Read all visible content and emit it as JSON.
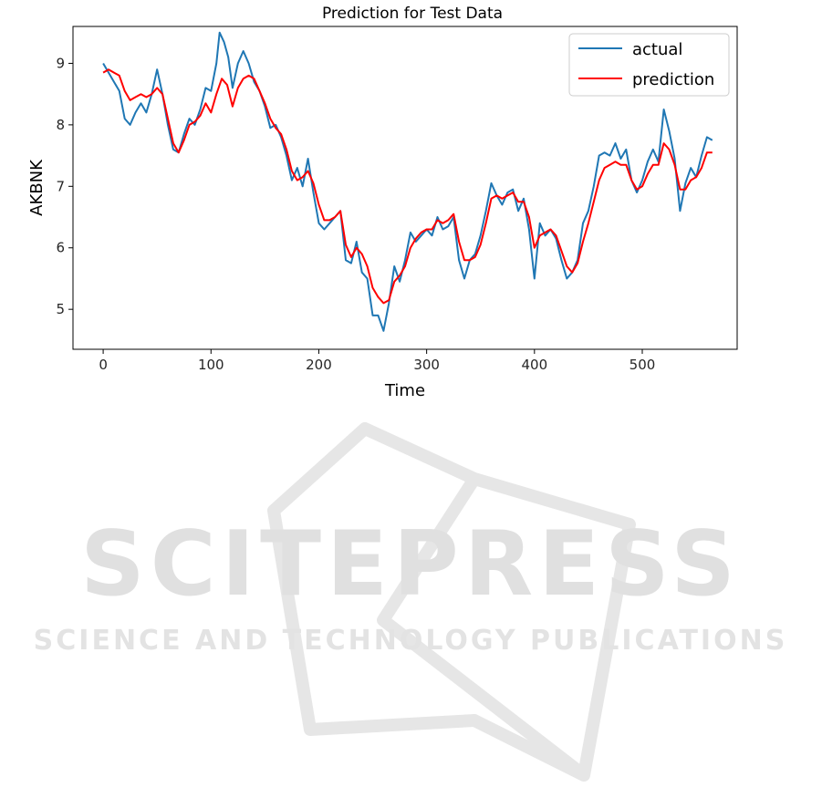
{
  "watermark": {
    "brand": "SCITEPRESS",
    "tagline": "SCIENCE AND TECHNOLOGY PUBLICATIONS"
  },
  "colors": {
    "actual": "#1f77b4",
    "prediction": "#ff0000",
    "watermark": "#e0e0e0"
  },
  "chart_data": {
    "type": "line",
    "title": "Prediction for Test Data",
    "xlabel": "Time",
    "ylabel": "AKBNK",
    "xlim": [
      -28,
      588
    ],
    "ylim": [
      4.35,
      9.6
    ],
    "xticks": [
      0,
      100,
      200,
      300,
      400,
      500
    ],
    "yticks": [
      5,
      6,
      7,
      8,
      9
    ],
    "grid": false,
    "legend": "top-right",
    "series": [
      {
        "name": "actual",
        "color": "#1f77b4",
        "points": [
          [
            0,
            9.0
          ],
          [
            5,
            8.85
          ],
          [
            10,
            8.7
          ],
          [
            15,
            8.55
          ],
          [
            20,
            8.1
          ],
          [
            25,
            8.0
          ],
          [
            30,
            8.2
          ],
          [
            35,
            8.35
          ],
          [
            40,
            8.2
          ],
          [
            45,
            8.5
          ],
          [
            50,
            8.9
          ],
          [
            55,
            8.5
          ],
          [
            60,
            8.0
          ],
          [
            65,
            7.6
          ],
          [
            70,
            7.55
          ],
          [
            75,
            7.85
          ],
          [
            80,
            8.1
          ],
          [
            85,
            8.0
          ],
          [
            90,
            8.25
          ],
          [
            95,
            8.6
          ],
          [
            100,
            8.55
          ],
          [
            105,
            9.0
          ],
          [
            108,
            9.5
          ],
          [
            112,
            9.35
          ],
          [
            116,
            9.1
          ],
          [
            120,
            8.6
          ],
          [
            125,
            9.0
          ],
          [
            130,
            9.2
          ],
          [
            135,
            9.0
          ],
          [
            140,
            8.7
          ],
          [
            145,
            8.55
          ],
          [
            150,
            8.3
          ],
          [
            155,
            7.95
          ],
          [
            160,
            8.0
          ],
          [
            165,
            7.8
          ],
          [
            170,
            7.5
          ],
          [
            175,
            7.1
          ],
          [
            180,
            7.3
          ],
          [
            185,
            7.0
          ],
          [
            190,
            7.45
          ],
          [
            195,
            6.9
          ],
          [
            200,
            6.4
          ],
          [
            205,
            6.3
          ],
          [
            210,
            6.4
          ],
          [
            215,
            6.5
          ],
          [
            220,
            6.6
          ],
          [
            225,
            5.8
          ],
          [
            230,
            5.75
          ],
          [
            235,
            6.1
          ],
          [
            240,
            5.6
          ],
          [
            245,
            5.5
          ],
          [
            250,
            4.9
          ],
          [
            255,
            4.9
          ],
          [
            260,
            4.65
          ],
          [
            265,
            5.1
          ],
          [
            270,
            5.7
          ],
          [
            275,
            5.45
          ],
          [
            280,
            5.8
          ],
          [
            285,
            6.25
          ],
          [
            290,
            6.1
          ],
          [
            295,
            6.2
          ],
          [
            300,
            6.3
          ],
          [
            305,
            6.2
          ],
          [
            310,
            6.5
          ],
          [
            315,
            6.3
          ],
          [
            320,
            6.35
          ],
          [
            325,
            6.5
          ],
          [
            330,
            5.8
          ],
          [
            335,
            5.5
          ],
          [
            340,
            5.8
          ],
          [
            345,
            5.9
          ],
          [
            350,
            6.2
          ],
          [
            355,
            6.6
          ],
          [
            360,
            7.05
          ],
          [
            365,
            6.85
          ],
          [
            370,
            6.7
          ],
          [
            375,
            6.9
          ],
          [
            380,
            6.95
          ],
          [
            385,
            6.6
          ],
          [
            390,
            6.8
          ],
          [
            395,
            6.3
          ],
          [
            400,
            5.5
          ],
          [
            405,
            6.4
          ],
          [
            410,
            6.2
          ],
          [
            415,
            6.3
          ],
          [
            420,
            6.15
          ],
          [
            425,
            5.8
          ],
          [
            430,
            5.5
          ],
          [
            435,
            5.6
          ],
          [
            440,
            5.8
          ],
          [
            445,
            6.4
          ],
          [
            450,
            6.6
          ],
          [
            455,
            7.0
          ],
          [
            460,
            7.5
          ],
          [
            465,
            7.55
          ],
          [
            470,
            7.5
          ],
          [
            475,
            7.7
          ],
          [
            480,
            7.45
          ],
          [
            485,
            7.6
          ],
          [
            490,
            7.1
          ],
          [
            495,
            6.9
          ],
          [
            500,
            7.1
          ],
          [
            505,
            7.4
          ],
          [
            510,
            7.6
          ],
          [
            515,
            7.4
          ],
          [
            520,
            8.25
          ],
          [
            525,
            7.9
          ],
          [
            530,
            7.45
          ],
          [
            535,
            6.6
          ],
          [
            540,
            7.05
          ],
          [
            545,
            7.3
          ],
          [
            550,
            7.15
          ],
          [
            555,
            7.5
          ],
          [
            560,
            7.8
          ],
          [
            565,
            7.75
          ]
        ]
      },
      {
        "name": "prediction",
        "color": "#ff0000",
        "points": [
          [
            0,
            8.85
          ],
          [
            5,
            8.9
          ],
          [
            10,
            8.85
          ],
          [
            15,
            8.8
          ],
          [
            20,
            8.55
          ],
          [
            25,
            8.4
          ],
          [
            30,
            8.45
          ],
          [
            35,
            8.5
          ],
          [
            40,
            8.45
          ],
          [
            45,
            8.5
          ],
          [
            50,
            8.6
          ],
          [
            55,
            8.5
          ],
          [
            60,
            8.1
          ],
          [
            65,
            7.7
          ],
          [
            70,
            7.55
          ],
          [
            75,
            7.75
          ],
          [
            80,
            8.0
          ],
          [
            85,
            8.05
          ],
          [
            90,
            8.15
          ],
          [
            95,
            8.35
          ],
          [
            100,
            8.2
          ],
          [
            105,
            8.5
          ],
          [
            110,
            8.75
          ],
          [
            115,
            8.65
          ],
          [
            120,
            8.3
          ],
          [
            125,
            8.6
          ],
          [
            130,
            8.75
          ],
          [
            135,
            8.8
          ],
          [
            140,
            8.75
          ],
          [
            145,
            8.55
          ],
          [
            150,
            8.35
          ],
          [
            155,
            8.1
          ],
          [
            160,
            7.95
          ],
          [
            165,
            7.85
          ],
          [
            170,
            7.6
          ],
          [
            175,
            7.25
          ],
          [
            180,
            7.1
          ],
          [
            185,
            7.15
          ],
          [
            190,
            7.25
          ],
          [
            195,
            7.05
          ],
          [
            200,
            6.7
          ],
          [
            205,
            6.45
          ],
          [
            210,
            6.45
          ],
          [
            215,
            6.5
          ],
          [
            220,
            6.6
          ],
          [
            225,
            6.05
          ],
          [
            230,
            5.85
          ],
          [
            235,
            6.0
          ],
          [
            240,
            5.9
          ],
          [
            245,
            5.7
          ],
          [
            250,
            5.35
          ],
          [
            255,
            5.2
          ],
          [
            260,
            5.1
          ],
          [
            265,
            5.15
          ],
          [
            270,
            5.45
          ],
          [
            275,
            5.55
          ],
          [
            280,
            5.7
          ],
          [
            285,
            6.0
          ],
          [
            290,
            6.15
          ],
          [
            295,
            6.25
          ],
          [
            300,
            6.3
          ],
          [
            305,
            6.3
          ],
          [
            310,
            6.45
          ],
          [
            315,
            6.4
          ],
          [
            320,
            6.45
          ],
          [
            325,
            6.55
          ],
          [
            330,
            6.1
          ],
          [
            335,
            5.8
          ],
          [
            340,
            5.8
          ],
          [
            345,
            5.85
          ],
          [
            350,
            6.05
          ],
          [
            355,
            6.4
          ],
          [
            360,
            6.8
          ],
          [
            365,
            6.85
          ],
          [
            370,
            6.8
          ],
          [
            375,
            6.85
          ],
          [
            380,
            6.9
          ],
          [
            385,
            6.75
          ],
          [
            390,
            6.75
          ],
          [
            395,
            6.5
          ],
          [
            400,
            6.0
          ],
          [
            405,
            6.2
          ],
          [
            410,
            6.25
          ],
          [
            415,
            6.3
          ],
          [
            420,
            6.2
          ],
          [
            425,
            5.95
          ],
          [
            430,
            5.7
          ],
          [
            435,
            5.6
          ],
          [
            440,
            5.75
          ],
          [
            445,
            6.1
          ],
          [
            450,
            6.4
          ],
          [
            455,
            6.75
          ],
          [
            460,
            7.1
          ],
          [
            465,
            7.3
          ],
          [
            470,
            7.35
          ],
          [
            475,
            7.4
          ],
          [
            480,
            7.35
          ],
          [
            485,
            7.35
          ],
          [
            490,
            7.1
          ],
          [
            495,
            6.95
          ],
          [
            500,
            7.0
          ],
          [
            505,
            7.2
          ],
          [
            510,
            7.35
          ],
          [
            515,
            7.35
          ],
          [
            520,
            7.7
          ],
          [
            525,
            7.6
          ],
          [
            530,
            7.35
          ],
          [
            535,
            6.95
          ],
          [
            540,
            6.95
          ],
          [
            545,
            7.1
          ],
          [
            550,
            7.15
          ],
          [
            555,
            7.3
          ],
          [
            560,
            7.55
          ],
          [
            565,
            7.55
          ]
        ]
      }
    ]
  }
}
